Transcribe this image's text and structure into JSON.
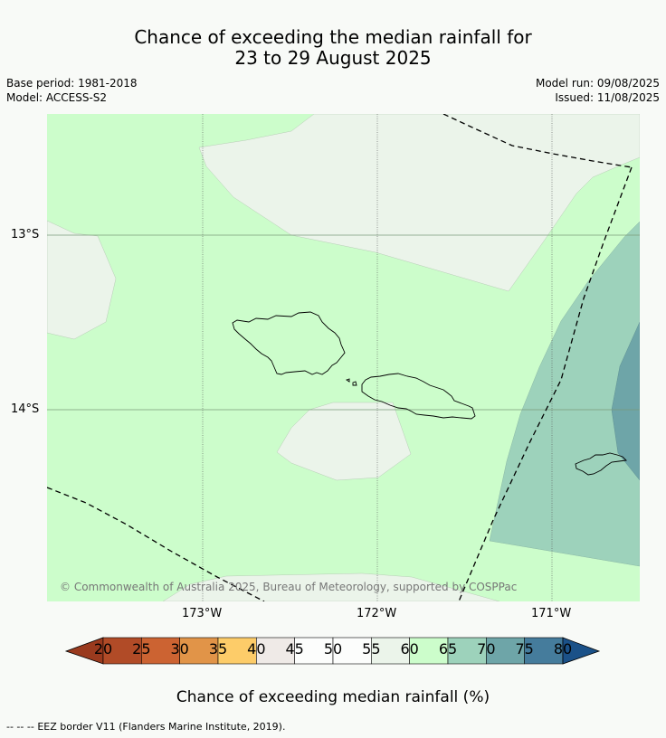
{
  "header": {
    "title_line1": "Chance of exceeding the median rainfall for",
    "title_line2": "23 to 29 August 2025",
    "base_period": "Base period: 1981-2018",
    "model": "Model: ACCESS-S2",
    "model_run": "Model run: 09/08/2025",
    "issued": "Issued: 11/08/2025"
  },
  "map": {
    "lat_labels": [
      "13°S",
      "14°S"
    ],
    "lon_labels": [
      "173°W",
      "172°W",
      "171°W"
    ],
    "copyright": "© Commonwealth of Australia 2025, Bureau of Meteorology, supported by COSPPac",
    "colors": {
      "band_45_55": "#ebf4ea",
      "band_55_65": "#ccfdcb",
      "band_65_70": "#9dd2bb",
      "band_70_75": "#6ea5a8"
    }
  },
  "colorbar": {
    "ticks": [
      "20",
      "25",
      "30",
      "35",
      "40",
      "45",
      "50",
      "55",
      "60",
      "65",
      "70",
      "75",
      "80"
    ],
    "colors": [
      "#b14b27",
      "#cc6332",
      "#e19448",
      "#fdcc69",
      "#efeae7",
      "#fcfdfc",
      "#fcfdfc",
      "#ebf4ea",
      "#ccfdcb",
      "#9dd2bb",
      "#6ea5a8",
      "#457c9c"
    ],
    "under_color": "#9a3a1e",
    "over_color": "#1b5188",
    "title": "Chance of exceeding median rainfall (%)"
  },
  "footer": {
    "legend_symbol": "--  --  --",
    "eez_text": "EEZ border V11 (Flanders Marine Institute, 2019)."
  }
}
